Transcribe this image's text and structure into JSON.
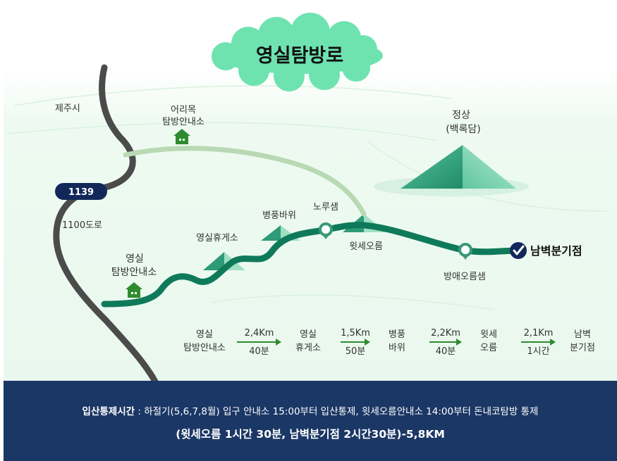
{
  "title": "영실탐방로",
  "map": {
    "places": {
      "jeju_city": "제주시",
      "road_number": "1139",
      "road_name": "1100도로",
      "eorimok_line1": "어리목",
      "eorimok_line2": "탐방안내소",
      "summit_line1": "정상",
      "summit_line2": "(백록담)",
      "yeongsil_line1": "영실",
      "yeongsil_line2": "탐방안내소",
      "rest_area": "영실휴게소",
      "byeongpung": "병풍바위",
      "noru": "노루샘",
      "witse": "윗세오름",
      "bangae": "방애오름샘",
      "nambyeok": "남벽분기점"
    },
    "colors": {
      "trail": "#0f7a5a",
      "road": "#4b4b4b",
      "side_trail": "#b9d9b4",
      "marker": "#3a9a78",
      "hut": "#2e8b2e",
      "cloud": "#6ee3b0"
    }
  },
  "route": {
    "stops": [
      {
        "line1": "영실",
        "line2": "탐방안내소"
      },
      {
        "line1": "영실",
        "line2": "휴게소"
      },
      {
        "line1": "병풍",
        "line2": "바위"
      },
      {
        "line1": "윗세",
        "line2": "오름"
      },
      {
        "line1": "남벽",
        "line2": "분기점"
      }
    ],
    "segments": [
      {
        "distance": "2,4Km",
        "time": "40분"
      },
      {
        "distance": "1,5Km",
        "time": "50분"
      },
      {
        "distance": "2,2Km",
        "time": "40분"
      },
      {
        "distance": "2,1Km",
        "time": "1시간"
      }
    ]
  },
  "footer": {
    "label": "입산통제시간",
    "text": " : 하절기(5,6,7,8월) 입구 안내소 15:00부터 입산통제, 윗세오름안내소 14:00부터 돈내코탐방 통제",
    "summary": "(윗세오름 1시간 30분, 남벽분기점 2시간30분)-5,8KM"
  }
}
